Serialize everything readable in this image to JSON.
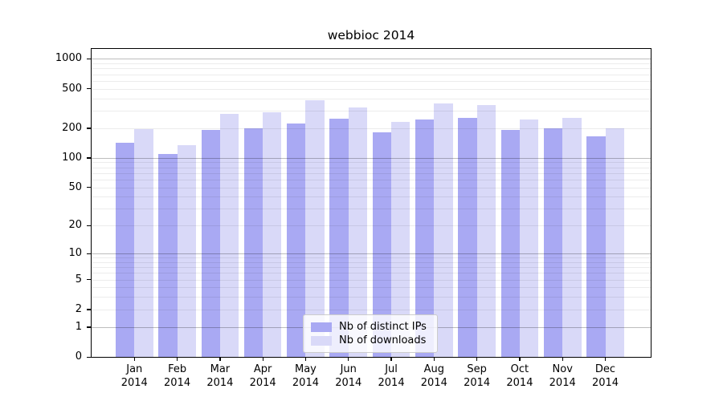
{
  "chart_data": {
    "type": "bar",
    "title": "webbioc 2014",
    "scale": "log1p",
    "categories": [
      "Jan",
      "Feb",
      "Mar",
      "Apr",
      "May",
      "Jun",
      "Jul",
      "Aug",
      "Sep",
      "Oct",
      "Nov",
      "Dec"
    ],
    "year_label": "2014",
    "series": [
      {
        "name": "Nb of distinct IPs",
        "color": "#a9a9f3",
        "values": [
          143,
          110,
          190,
          198,
          222,
          248,
          180,
          243,
          253,
          190,
          198,
          165
        ]
      },
      {
        "name": "Nb of downloads",
        "color": "#d9d9f8",
        "values": [
          195,
          134,
          280,
          290,
          380,
          324,
          230,
          352,
          340,
          243,
          252,
          200
        ]
      }
    ],
    "yticks": [
      0,
      1,
      2,
      5,
      10,
      20,
      50,
      100,
      200,
      500,
      1000
    ],
    "ylim": [
      0,
      1259
    ],
    "grid": true,
    "grid_minor_values": [
      2,
      3,
      4,
      5,
      6,
      7,
      8,
      9,
      20,
      30,
      40,
      50,
      60,
      70,
      80,
      90,
      200,
      300,
      400,
      500,
      600,
      700,
      800,
      900
    ],
    "grid_major_values": [
      1,
      10,
      100,
      1000
    ],
    "legend_position": "lower center",
    "xlabel": "",
    "ylabel": "",
    "colors": {
      "background": "#ffffff",
      "spine": "#000000"
    }
  }
}
